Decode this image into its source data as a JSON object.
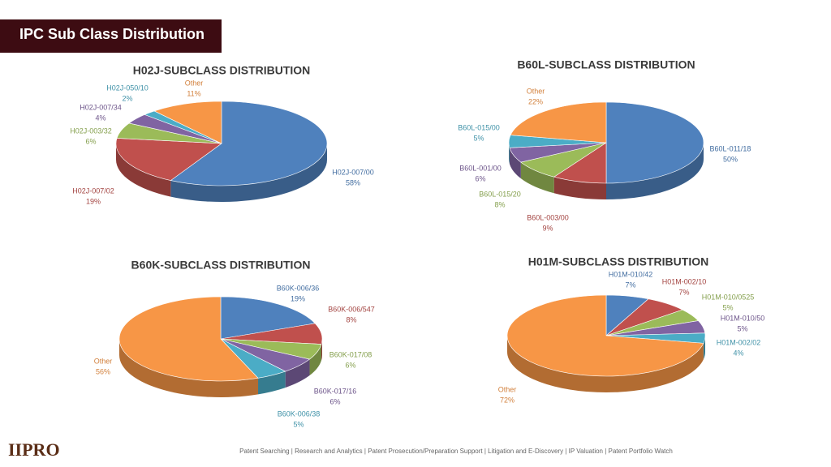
{
  "header": {
    "title": "IPC Sub Class Distribution"
  },
  "chart_data": [
    {
      "type": "pie",
      "title": "H02J-SUBCLASS DISTRIBUTION",
      "categories": [
        "H02J-007/00",
        "H02J-007/02",
        "H02J-003/32",
        "H02J-007/34",
        "H02J-050/10",
        "Other"
      ],
      "values": [
        58,
        19,
        6,
        4,
        2,
        11
      ],
      "value_labels": [
        "58%",
        "19%",
        "6%",
        "4%",
        "2%",
        "11%"
      ],
      "colors": [
        "#4f81bd",
        "#c0504d",
        "#9bbb59",
        "#8064a2",
        "#4bacc6",
        "#f79646"
      ]
    },
    {
      "type": "pie",
      "title": "B60L-SUBCLASS DISTRIBUTION",
      "categories": [
        "B60L-011/18",
        "B60L-003/00",
        "B60L-015/20",
        "B60L-001/00",
        "B60L-015/00",
        "Other"
      ],
      "values": [
        50,
        9,
        8,
        6,
        5,
        22
      ],
      "value_labels": [
        "50%",
        "9%",
        "8%",
        "6%",
        "5%",
        "22%"
      ],
      "colors": [
        "#4f81bd",
        "#c0504d",
        "#9bbb59",
        "#8064a2",
        "#4bacc6",
        "#f79646"
      ]
    },
    {
      "type": "pie",
      "title": "B60K-SUBCLASS DISTRIBUTION",
      "categories": [
        "B60K-006/36",
        "B60K-006/547",
        "B60K-017/08",
        "B60K-017/16",
        "B60K-006/38",
        "Other"
      ],
      "values": [
        19,
        8,
        6,
        6,
        5,
        56
      ],
      "value_labels": [
        "19%",
        "8%",
        "6%",
        "6%",
        "5%",
        "56%"
      ],
      "colors": [
        "#4f81bd",
        "#c0504d",
        "#9bbb59",
        "#8064a2",
        "#4bacc6",
        "#f79646"
      ]
    },
    {
      "type": "pie",
      "title": "H01M-SUBCLASS DISTRIBUTION",
      "categories": [
        "H01M-010/42",
        "H01M-002/10",
        "H01M-010/0525",
        "H01M-010/50",
        "H01M-002/02",
        "Other"
      ],
      "values": [
        7,
        7,
        5,
        5,
        4,
        72
      ],
      "value_labels": [
        "7%",
        "7%",
        "5%",
        "5%",
        "4%",
        "72%"
      ],
      "colors": [
        "#4f81bd",
        "#c0504d",
        "#9bbb59",
        "#8064a2",
        "#4bacc6",
        "#f79646"
      ]
    }
  ],
  "footer": {
    "logo": "IIPRO",
    "text": "Patent Searching | Research and Analytics | Patent Prosecution/Preparation Support | Litigation and E-Discovery | IP Valuation | Patent Portfolio Watch"
  }
}
